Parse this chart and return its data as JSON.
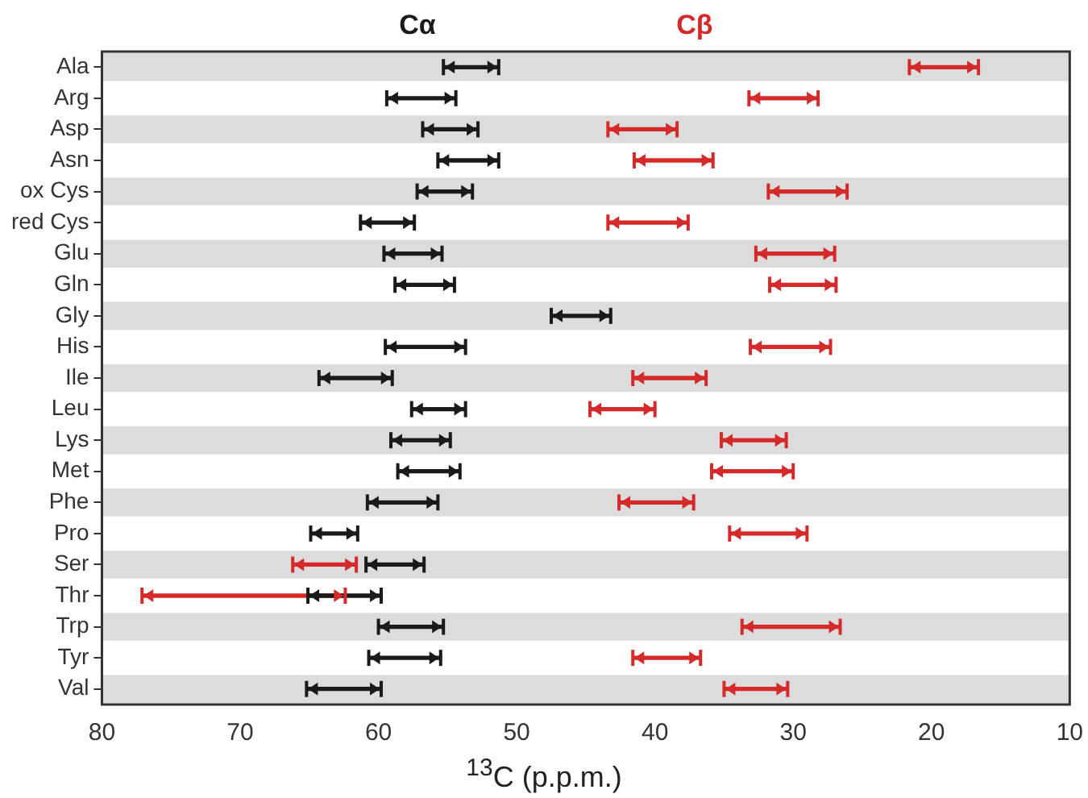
{
  "chart_data": {
    "type": "bar",
    "orientation": "horizontal",
    "xlabel": "$^{13}$C (p.p.m.)",
    "legend": "top",
    "categories": [
      "Ala",
      "Arg",
      "Asp",
      "Asn",
      "ox Cys",
      "red Cys",
      "Glu",
      "Gln",
      "Gly",
      "His",
      "Ile",
      "Leu",
      "Lys",
      "Met",
      "Phe",
      "Pro",
      "Ser",
      "Thr",
      "Trp",
      "Tyr",
      "Val"
    ],
    "xlim": [
      80,
      10
    ],
    "xticks": [
      80,
      70,
      60,
      50,
      40,
      30,
      20,
      10
    ],
    "grid": false,
    "series": [
      {
        "name": "Cα",
        "color": "#1a1a1a",
        "base": [
          51.3,
          54.4,
          52.8,
          51.3,
          53.2,
          57.4,
          55.4,
          54.5,
          43.2,
          53.7,
          59.0,
          53.7,
          54.8,
          54.1,
          55.7,
          61.5,
          56.7,
          59.8,
          55.3,
          55.5,
          59.8
        ],
        "values": [
          4.0,
          5.0,
          4.0,
          4.4,
          4.0,
          3.9,
          4.2,
          4.3,
          4.3,
          5.8,
          5.3,
          3.9,
          4.3,
          4.5,
          5.1,
          3.4,
          4.2,
          5.3,
          4.7,
          5.2,
          5.4
        ]
      },
      {
        "name": "Cβ",
        "color": "#d42a2a",
        "base": [
          16.6,
          28.2,
          38.4,
          35.8,
          26.1,
          37.6,
          27.0,
          26.9,
          null,
          27.3,
          36.3,
          40.0,
          30.5,
          30.0,
          37.2,
          29.0,
          61.6,
          62.4,
          26.6,
          36.7,
          30.4
        ],
        "values": [
          5.0,
          5.0,
          5.0,
          5.7,
          5.7,
          5.8,
          5.7,
          4.8,
          null,
          5.8,
          5.3,
          4.7,
          4.7,
          5.9,
          5.4,
          5.6,
          4.6,
          14.7,
          7.1,
          4.9,
          4.6
        ]
      }
    ]
  }
}
